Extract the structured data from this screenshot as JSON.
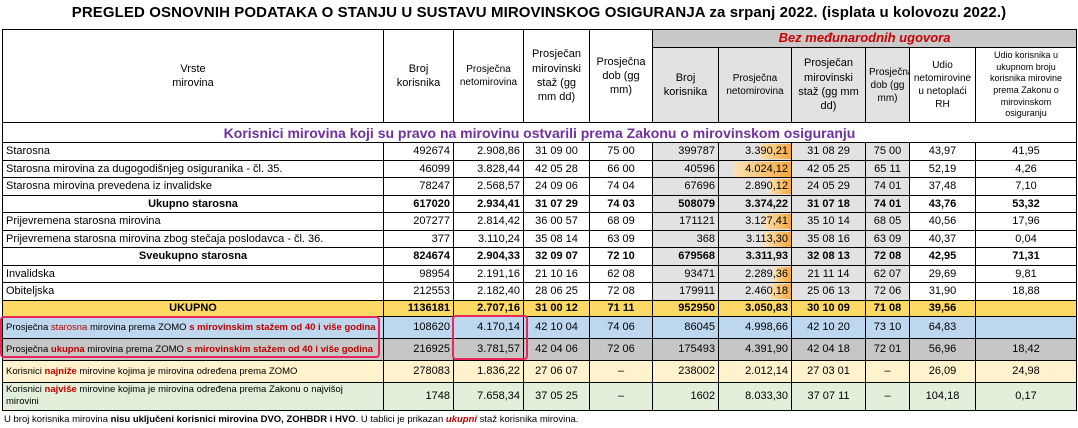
{
  "title": "PREGLED OSNOVNIH PODATAKA O STANJU U SUSTAVU MIROVINSKOG OSIGURANJA za srpanj 2022. (isplata u kolovozu 2022.)",
  "header": {
    "vrste": "Vrste",
    "mirovina": "mirovina",
    "broj_korisnika": "Broj korisnika",
    "prosjecna_netomirovina": "Prosječna netomirovina",
    "prosjecan_staz": "Prosječan mirovinski staž (gg mm dd)",
    "prosjecna_dob": "Prosječna dob (gg mm)",
    "bez_ugovora": "Bez međunarodnih ugovora",
    "udio_netoplaci": "Udio netomirovine u netoplaći RH",
    "udio_korisnika": "Udio korisnika u ukupnom broju korisnika mirovine prema Zakonu o mirovinskom osiguranju"
  },
  "subtitle": "Korisnici mirovina koji su pravo na mirovinu ostvarili prema Zakonu o mirovinskom osiguranju",
  "rows": [
    {
      "label": "Starosna",
      "broj": "492674",
      "neto": "2.908,86",
      "staz": "31 09 00",
      "dob": "75 00",
      "b_broj": "399787",
      "b_neto": "3.390,21",
      "b_bar": 0.45,
      "b_staz": "31 08 29",
      "b_dob": "75 00",
      "udio_rh": "43,97",
      "udio_k": "41,95"
    },
    {
      "label": "Starosna mirovina za dugogodišnjeg osiguranika - čl. 35.",
      "broj": "46099",
      "neto": "3.828,44",
      "staz": "42 05 28",
      "dob": "66 00",
      "b_broj": "40596",
      "b_neto": "4.024,12",
      "b_bar": 0.8,
      "b_staz": "42 05 25",
      "b_dob": "65 11",
      "udio_rh": "52,19",
      "udio_k": "4,26"
    },
    {
      "label": "Starosna mirovina prevedena iz invalidske",
      "broj": "78247",
      "neto": "2.568,57",
      "staz": "24 09 06",
      "dob": "74 04",
      "b_broj": "67696",
      "b_neto": "2.890,12",
      "b_bar": 0.3,
      "b_staz": "24 05 29",
      "b_dob": "74 01",
      "udio_rh": "37,48",
      "udio_k": "7,10"
    },
    {
      "label": "Ukupno starosna",
      "broj": "617020",
      "neto": "2.934,41",
      "staz": "31 07 29",
      "dob": "74 03",
      "b_broj": "508079",
      "b_neto": "3.374,22",
      "b_bar": 0.0,
      "b_staz": "31 07 18",
      "b_dob": "74 01",
      "udio_rh": "43,76",
      "udio_k": "53,32",
      "bold": true
    },
    {
      "label": "Prijevremena starosna mirovina",
      "broj": "207277",
      "neto": "2.814,42",
      "staz": "36 00 57",
      "dob": "68 09",
      "b_broj": "171121",
      "b_neto": "3.127,41",
      "b_bar": 0.38,
      "b_staz": "35 10 14",
      "b_dob": "68 05",
      "udio_rh": "40,56",
      "udio_k": "17,96"
    },
    {
      "label": "Prijevremena starosna mirovina zbog stečaja poslodavca - čl. 36.",
      "broj": "377",
      "neto": "3.110,24",
      "staz": "35 08 14",
      "dob": "63 09",
      "b_broj": "368",
      "b_neto": "3.113,30",
      "b_bar": 0.38,
      "b_staz": "35 08 16",
      "b_dob": "63 09",
      "udio_rh": "40,37",
      "udio_k": "0,04"
    },
    {
      "label": "Sveukupno starosna",
      "broj": "824674",
      "neto": "2.904,33",
      "staz": "32 09 07",
      "dob": "72 10",
      "b_broj": "679568",
      "b_neto": "3.311,93",
      "b_bar": 0.0,
      "b_staz": "32 08 13",
      "b_dob": "72 08",
      "udio_rh": "42,95",
      "udio_k": "71,31",
      "bold": true
    },
    {
      "label": "Invalidska",
      "broj": "98954",
      "neto": "2.191,16",
      "staz": "21 10 16",
      "dob": "62 08",
      "b_broj": "93471",
      "b_neto": "2.289,36",
      "b_bar": 0.25,
      "b_staz": "21 11 14",
      "b_dob": "62 07",
      "udio_rh": "29,69",
      "udio_k": "9,81"
    },
    {
      "label": "Obiteljska",
      "broj": "212553",
      "neto": "2.182,40",
      "staz": "28 06 25",
      "dob": "72 08",
      "b_broj": "179911",
      "b_neto": "2.460,18",
      "b_bar": 0.3,
      "b_staz": "25 06 13",
      "b_dob": "72 06",
      "udio_rh": "31,90",
      "udio_k": "18,88"
    }
  ],
  "ukupno": {
    "label": "UKUPNO",
    "broj": "1136181",
    "neto": "2.707,16",
    "staz": "31 00 12",
    "dob": "71 11",
    "b_broj": "952950",
    "b_neto": "3.050,83",
    "b_staz": "30 10 09",
    "b_dob": "71 08",
    "udio_rh": "39,56",
    "udio_k": ""
  },
  "zomo1": {
    "pre": "Prosječna ",
    "key": "starosna",
    "mid": " mirovina prema ZOMO ",
    "post": "s mirovinskim stažem od 40 i više godina",
    "broj": "108620",
    "neto": "4.170,14",
    "staz": "42 10 04",
    "dob": "74 06",
    "b_broj": "86045",
    "b_neto": "4.998,66",
    "b_staz": "42 10 20",
    "b_dob": "73 10",
    "udio_rh": "64,83",
    "udio_k": ""
  },
  "zomo2": {
    "pre": "Prosječna ",
    "key": "ukupna",
    "mid": " mirovina prema ZOMO ",
    "post": "s mirovinskim stažem od 40 i više godina",
    "broj": "216925",
    "neto": "3.781,57",
    "staz": "42 04 06",
    "dob": "72 06",
    "b_broj": "175493",
    "b_neto": "4.391,90",
    "b_staz": "42 04 18",
    "b_dob": "72 01",
    "udio_rh": "56,96",
    "udio_k": "18,42"
  },
  "najn": {
    "pre": "Korisnici ",
    "key": "najniže",
    "post": " mirovine kojima je mirovina određena prema ZOMO",
    "broj": "278083",
    "neto": "1.836,22",
    "staz": "27 06 07",
    "dob": "–",
    "b_broj": "238002",
    "b_neto": "2.012,14",
    "b_staz": "27 03 01",
    "b_dob": "–",
    "udio_rh": "26,09",
    "udio_k": "24,98"
  },
  "najv": {
    "pre": "Korisnici ",
    "key": "najviše",
    "post1": " mirovine kojima je mirovina određena prema Zakonu o najvišoj",
    "post2": "mirovini",
    "broj": "1748",
    "neto": "7.658,34",
    "staz": "37 05 25",
    "dob": "–",
    "b_broj": "1602",
    "b_neto": "8.033,30",
    "b_staz": "37 07 11",
    "b_dob": "–",
    "udio_rh": "104,18",
    "udio_k": "0,17"
  },
  "footer": {
    "p1": "U broj korisnika mirovina ",
    "b1": "nisu uključeni korisnici mirovina DVO, ZOHBDR i HVO",
    "p2": ". U tablici je prikazan ",
    "ukp": "ukupni",
    "p3": " staž korisnika mirovina."
  }
}
